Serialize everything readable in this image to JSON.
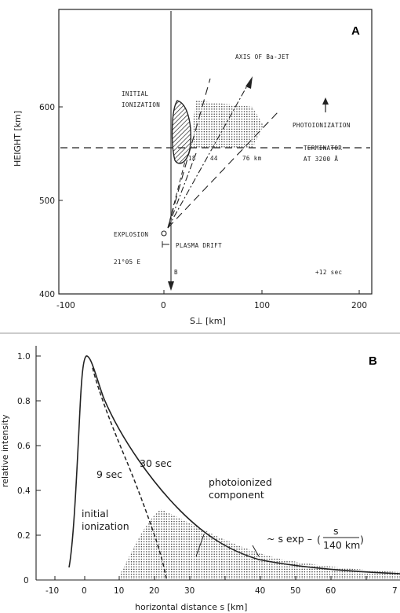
{
  "panel_a": {
    "letter": "A",
    "ylabel": "HEIGHT [km]",
    "xlabel": "S⊥ [km]",
    "yticks": [
      "600",
      "500",
      "400"
    ],
    "xticks": [
      "-100",
      "0",
      "100",
      "200"
    ],
    "labels": {
      "axis_jet": "AXIS OF Ba-JET",
      "initial_1": "INITIAL",
      "initial_2": "IONIZATION",
      "photo": "PHOTOIONIZATION",
      "terminator_1": "TERMINATOR",
      "terminator_2": "AT 3200 Å",
      "n18": "18",
      "n44": "44",
      "n76": "76 km",
      "explosion": "EXPLOSION",
      "plasma_drift": "PLASMA DRIFT",
      "lon": "21°05 E",
      "b": "B",
      "time": "+12 sec"
    }
  },
  "panel_b": {
    "letter": "B",
    "ylabel": "relative intensity",
    "xlabel": "horizontal distance s [km]",
    "yticks": [
      "1.0",
      "0.8",
      "0.6",
      "0.4",
      "0.2",
      "0"
    ],
    "xticks": [
      "-10",
      "0",
      "10",
      "20",
      "30",
      "40",
      "50",
      "60",
      "7"
    ],
    "labels": {
      "sec9": "9 sec",
      "sec30": "30 sec",
      "photo_1": "photoionized",
      "photo_2": "component",
      "init_1": "initial",
      "init_2": "ionization",
      "formula_prefix": "~ s exp –",
      "frac_num": "s",
      "frac_den": "140 km"
    }
  }
}
